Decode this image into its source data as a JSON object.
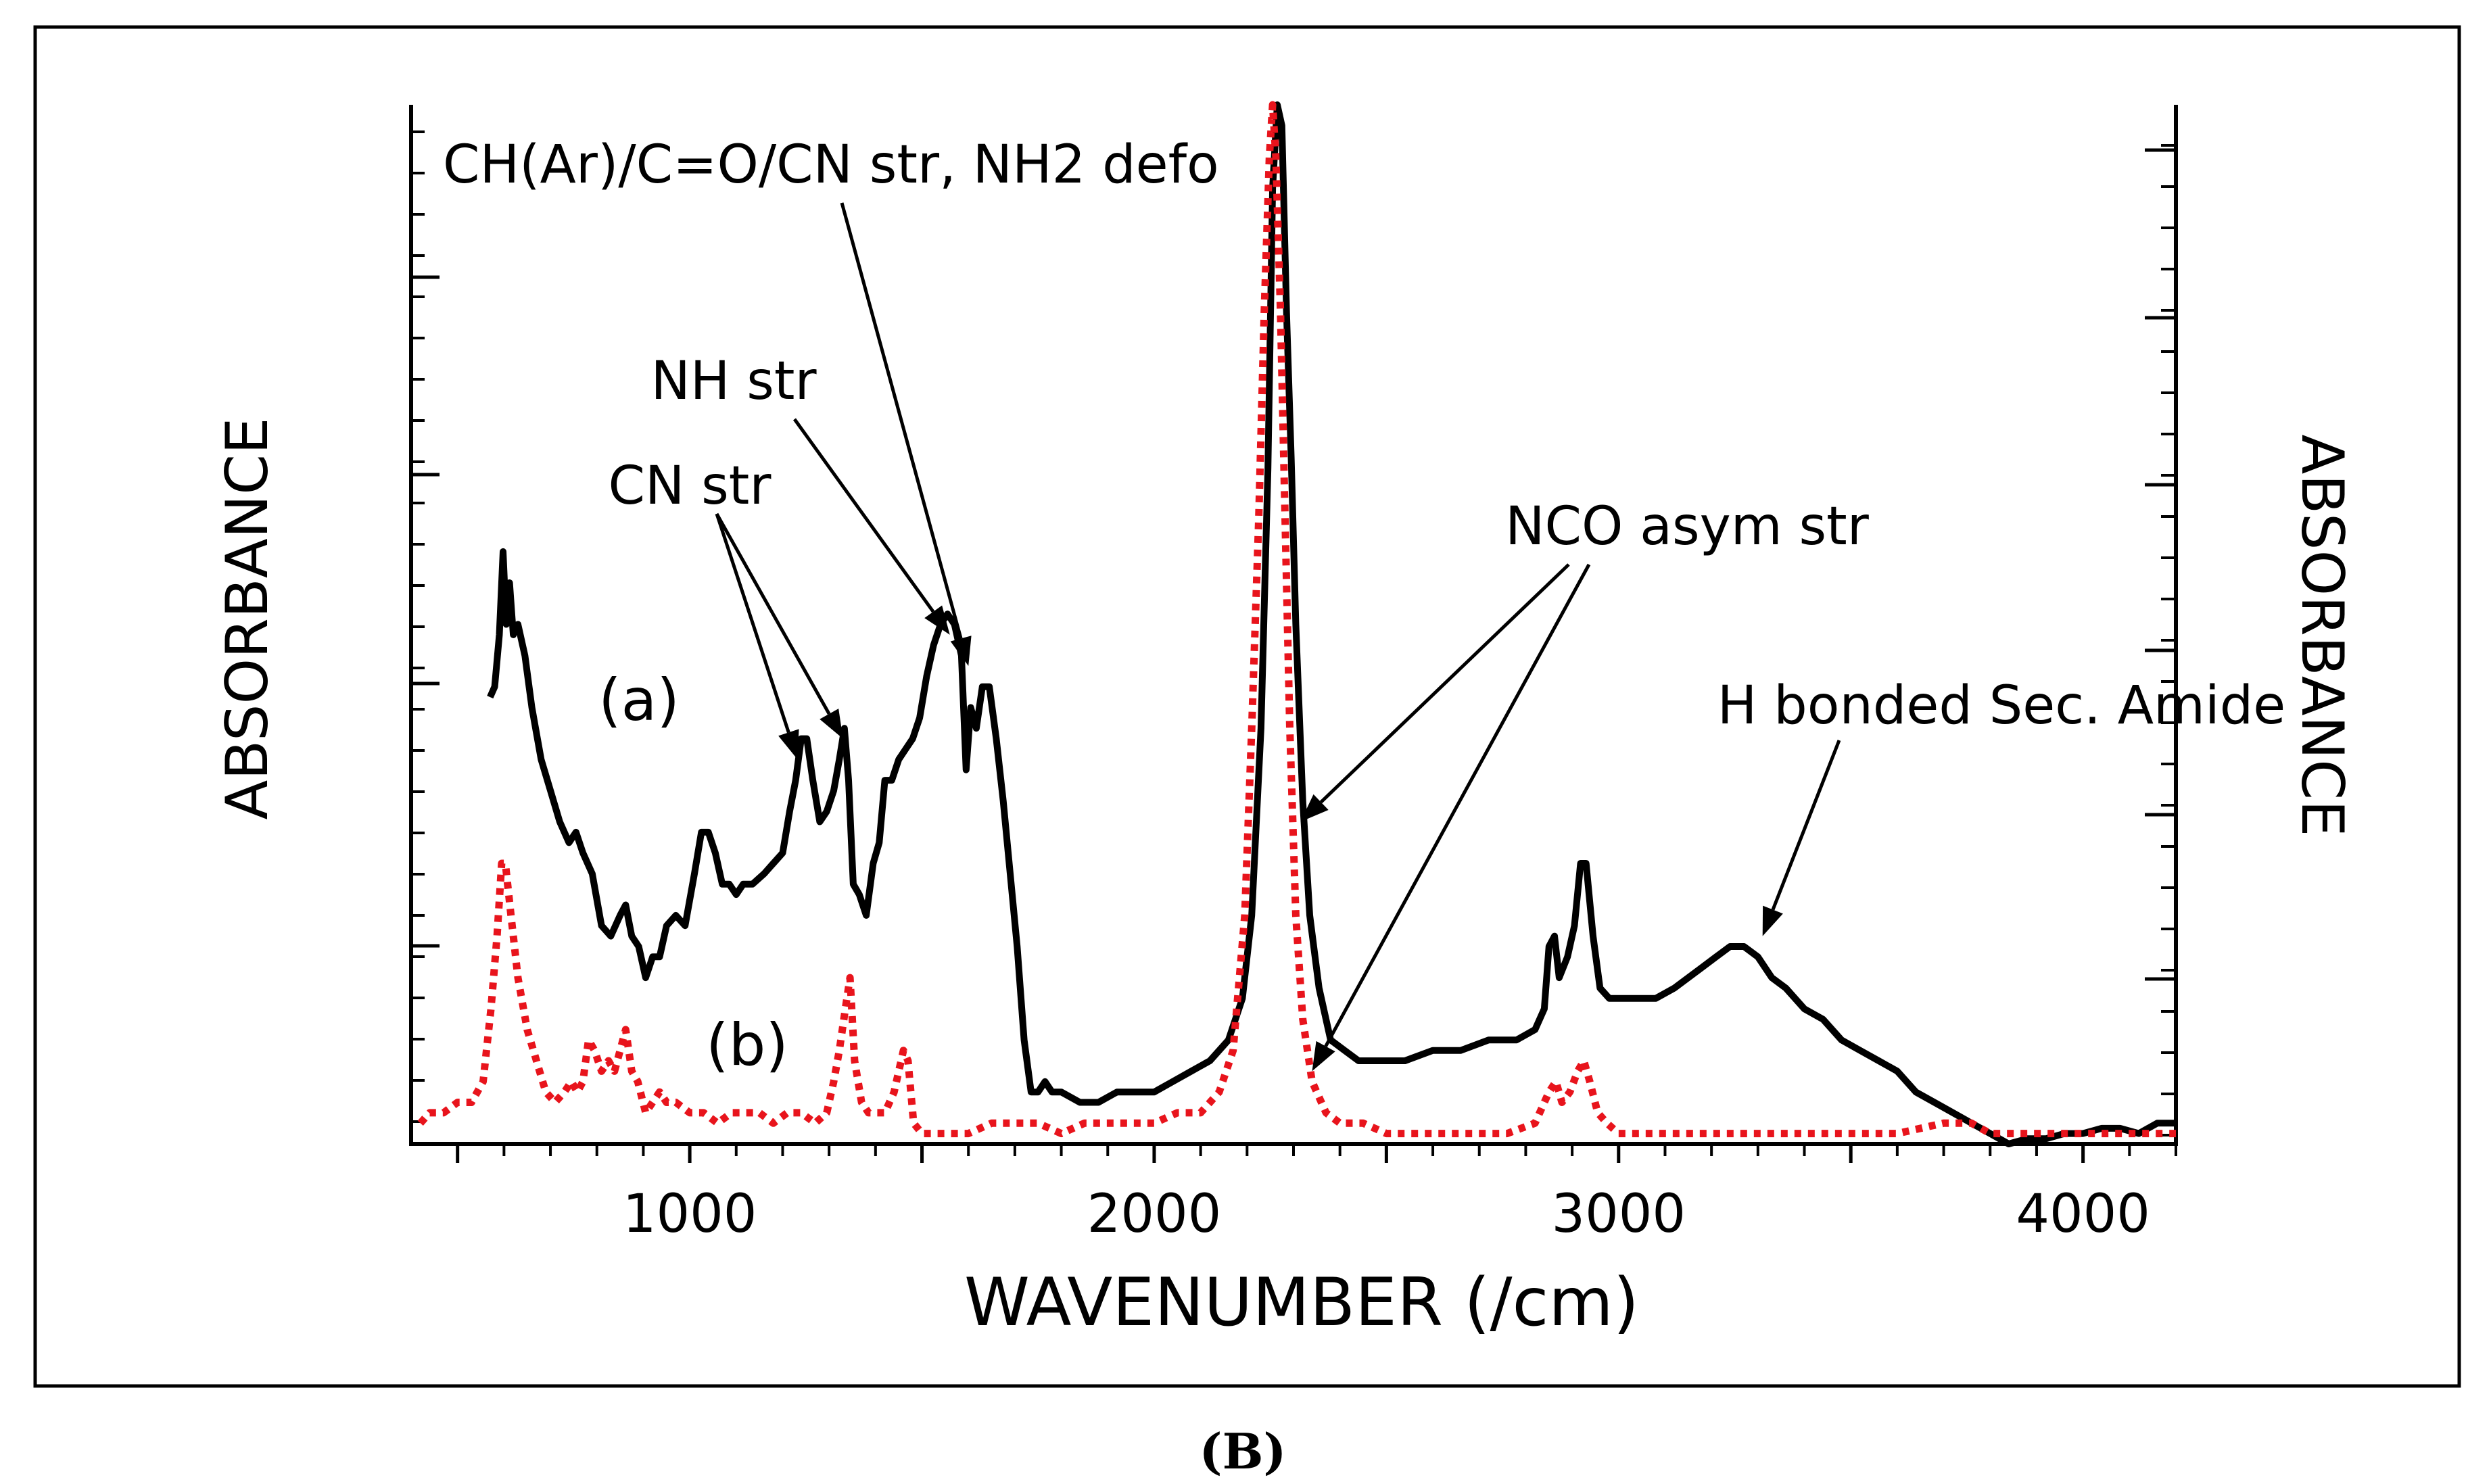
{
  "chart_data": {
    "type": "line",
    "xlabel": "WAVENUMBER (/cm)",
    "ylabel_left": "ABSORBANCE",
    "ylabel_right": "ABSORBANCE",
    "xlim": [
      400,
      4200
    ],
    "ylim": [
      0,
      100
    ],
    "x_ticks": [
      1000,
      2000,
      3000,
      4000
    ],
    "x_tick_labels": [
      "1000",
      "2000",
      "3000",
      "4000"
    ],
    "caption": "(B)",
    "series": [
      {
        "name": "(a)",
        "label": "(a)",
        "color": "#000000",
        "style": "solid",
        "points": [
          [
            570,
            43
          ],
          [
            580,
            44
          ],
          [
            590,
            49
          ],
          [
            598,
            57
          ],
          [
            605,
            50
          ],
          [
            612,
            54
          ],
          [
            620,
            49
          ],
          [
            630,
            50
          ],
          [
            645,
            47
          ],
          [
            660,
            42
          ],
          [
            680,
            37
          ],
          [
            700,
            34
          ],
          [
            720,
            31
          ],
          [
            740,
            29
          ],
          [
            755,
            30
          ],
          [
            770,
            28
          ],
          [
            790,
            26
          ],
          [
            810,
            21
          ],
          [
            830,
            20
          ],
          [
            850,
            22
          ],
          [
            862,
            23
          ],
          [
            875,
            20
          ],
          [
            890,
            19
          ],
          [
            905,
            16
          ],
          [
            920,
            18
          ],
          [
            935,
            18
          ],
          [
            950,
            21
          ],
          [
            970,
            22
          ],
          [
            990,
            21
          ],
          [
            1010,
            26
          ],
          [
            1025,
            30
          ],
          [
            1040,
            30
          ],
          [
            1055,
            28
          ],
          [
            1070,
            25
          ],
          [
            1085,
            25
          ],
          [
            1100,
            24
          ],
          [
            1115,
            25
          ],
          [
            1135,
            25
          ],
          [
            1160,
            26
          ],
          [
            1180,
            27
          ],
          [
            1200,
            28
          ],
          [
            1215,
            32
          ],
          [
            1228,
            35
          ],
          [
            1240,
            39
          ],
          [
            1252,
            39
          ],
          [
            1265,
            35
          ],
          [
            1280,
            31
          ],
          [
            1295,
            32
          ],
          [
            1310,
            34
          ],
          [
            1322,
            37
          ],
          [
            1333,
            40
          ],
          [
            1342,
            35
          ],
          [
            1352,
            25
          ],
          [
            1365,
            24
          ],
          [
            1380,
            22
          ],
          [
            1395,
            27
          ],
          [
            1408,
            29
          ],
          [
            1420,
            35
          ],
          [
            1435,
            35
          ],
          [
            1450,
            37
          ],
          [
            1465,
            38
          ],
          [
            1480,
            39
          ],
          [
            1495,
            41
          ],
          [
            1510,
            45
          ],
          [
            1525,
            48
          ],
          [
            1540,
            50
          ],
          [
            1555,
            51
          ],
          [
            1570,
            50
          ],
          [
            1585,
            47
          ],
          [
            1595,
            36
          ],
          [
            1605,
            42
          ],
          [
            1617,
            40
          ],
          [
            1630,
            44
          ],
          [
            1645,
            44
          ],
          [
            1660,
            39
          ],
          [
            1675,
            33
          ],
          [
            1690,
            26
          ],
          [
            1705,
            19
          ],
          [
            1720,
            10
          ],
          [
            1735,
            5
          ],
          [
            1750,
            5
          ],
          [
            1765,
            6
          ],
          [
            1780,
            5
          ],
          [
            1800,
            5
          ],
          [
            1840,
            4
          ],
          [
            1880,
            4
          ],
          [
            1920,
            5
          ],
          [
            1960,
            5
          ],
          [
            2000,
            5
          ],
          [
            2040,
            6
          ],
          [
            2080,
            7
          ],
          [
            2120,
            8
          ],
          [
            2160,
            10
          ],
          [
            2190,
            14
          ],
          [
            2210,
            22
          ],
          [
            2230,
            40
          ],
          [
            2245,
            65
          ],
          [
            2255,
            92
          ],
          [
            2265,
            100
          ],
          [
            2275,
            98
          ],
          [
            2285,
            80
          ],
          [
            2295,
            66
          ],
          [
            2305,
            50
          ],
          [
            2320,
            33
          ],
          [
            2335,
            22
          ],
          [
            2355,
            15
          ],
          [
            2380,
            10
          ],
          [
            2410,
            9
          ],
          [
            2440,
            8
          ],
          [
            2480,
            8
          ],
          [
            2540,
            8
          ],
          [
            2600,
            9
          ],
          [
            2660,
            9
          ],
          [
            2720,
            10
          ],
          [
            2780,
            10
          ],
          [
            2820,
            11
          ],
          [
            2840,
            13
          ],
          [
            2850,
            19
          ],
          [
            2862,
            20
          ],
          [
            2872,
            16
          ],
          [
            2890,
            18
          ],
          [
            2905,
            21
          ],
          [
            2918,
            27
          ],
          [
            2930,
            27
          ],
          [
            2945,
            20
          ],
          [
            2960,
            15
          ],
          [
            2980,
            14
          ],
          [
            3000,
            14
          ],
          [
            3040,
            14
          ],
          [
            3080,
            14
          ],
          [
            3120,
            15
          ],
          [
            3150,
            16
          ],
          [
            3180,
            17
          ],
          [
            3210,
            18
          ],
          [
            3240,
            19
          ],
          [
            3270,
            19
          ],
          [
            3300,
            18
          ],
          [
            3330,
            16
          ],
          [
            3360,
            15
          ],
          [
            3400,
            13
          ],
          [
            3440,
            12
          ],
          [
            3480,
            10
          ],
          [
            3520,
            9
          ],
          [
            3560,
            8
          ],
          [
            3600,
            7
          ],
          [
            3640,
            5
          ],
          [
            3680,
            4
          ],
          [
            3720,
            3
          ],
          [
            3760,
            2
          ],
          [
            3800,
            1
          ],
          [
            3840,
            0
          ],
          [
            3880,
            0.5
          ],
          [
            3920,
            0.5
          ],
          [
            3960,
            1
          ],
          [
            4000,
            1
          ],
          [
            4040,
            1.5
          ],
          [
            4080,
            1.5
          ],
          [
            4120,
            1
          ],
          [
            4160,
            2
          ],
          [
            4200,
            2
          ]
        ]
      },
      {
        "name": "(b)",
        "label": "(b)",
        "color": "#e8141c",
        "style": "dotted",
        "points": [
          [
            420,
            2
          ],
          [
            440,
            3
          ],
          [
            470,
            3
          ],
          [
            500,
            4
          ],
          [
            530,
            4
          ],
          [
            555,
            6
          ],
          [
            572,
            13
          ],
          [
            585,
            20
          ],
          [
            595,
            27
          ],
          [
            603,
            27
          ],
          [
            615,
            22
          ],
          [
            630,
            16
          ],
          [
            650,
            11
          ],
          [
            670,
            8
          ],
          [
            690,
            5
          ],
          [
            710,
            4
          ],
          [
            730,
            5
          ],
          [
            745,
            6
          ],
          [
            758,
            5
          ],
          [
            770,
            6
          ],
          [
            782,
            10
          ],
          [
            795,
            9
          ],
          [
            810,
            7
          ],
          [
            825,
            8
          ],
          [
            838,
            7
          ],
          [
            850,
            9
          ],
          [
            862,
            11
          ],
          [
            875,
            7
          ],
          [
            888,
            6
          ],
          [
            905,
            3
          ],
          [
            920,
            4
          ],
          [
            935,
            5
          ],
          [
            950,
            4
          ],
          [
            970,
            4
          ],
          [
            1000,
            3
          ],
          [
            1030,
            3
          ],
          [
            1060,
            2
          ],
          [
            1090,
            3
          ],
          [
            1120,
            3
          ],
          [
            1150,
            3
          ],
          [
            1180,
            2
          ],
          [
            1210,
            3
          ],
          [
            1240,
            3
          ],
          [
            1270,
            2
          ],
          [
            1295,
            3
          ],
          [
            1310,
            6
          ],
          [
            1322,
            9
          ],
          [
            1335,
            13
          ],
          [
            1345,
            16
          ],
          [
            1355,
            8
          ],
          [
            1370,
            4
          ],
          [
            1385,
            3
          ],
          [
            1400,
            3
          ],
          [
            1420,
            3
          ],
          [
            1440,
            5
          ],
          [
            1450,
            7
          ],
          [
            1460,
            9
          ],
          [
            1470,
            8
          ],
          [
            1482,
            2
          ],
          [
            1500,
            1
          ],
          [
            1550,
            1
          ],
          [
            1600,
            1
          ],
          [
            1650,
            2
          ],
          [
            1700,
            2
          ],
          [
            1750,
            2
          ],
          [
            1800,
            1
          ],
          [
            1850,
            2
          ],
          [
            1900,
            2
          ],
          [
            1950,
            2
          ],
          [
            2000,
            2
          ],
          [
            2050,
            3
          ],
          [
            2100,
            3
          ],
          [
            2140,
            5
          ],
          [
            2170,
            9
          ],
          [
            2195,
            22
          ],
          [
            2210,
            40
          ],
          [
            2225,
            60
          ],
          [
            2237,
            80
          ],
          [
            2248,
            95
          ],
          [
            2255,
            100
          ],
          [
            2262,
            95
          ],
          [
            2272,
            80
          ],
          [
            2282,
            60
          ],
          [
            2292,
            40
          ],
          [
            2305,
            22
          ],
          [
            2320,
            12
          ],
          [
            2340,
            6
          ],
          [
            2370,
            3
          ],
          [
            2400,
            2
          ],
          [
            2450,
            2
          ],
          [
            2500,
            1
          ],
          [
            2550,
            1
          ],
          [
            2600,
            1
          ],
          [
            2650,
            1
          ],
          [
            2700,
            1
          ],
          [
            2760,
            1
          ],
          [
            2820,
            2
          ],
          [
            2850,
            5
          ],
          [
            2865,
            6
          ],
          [
            2878,
            4
          ],
          [
            2895,
            5
          ],
          [
            2912,
            7
          ],
          [
            2925,
            8
          ],
          [
            2938,
            6
          ],
          [
            2955,
            3
          ],
          [
            2975,
            2
          ],
          [
            3000,
            1
          ],
          [
            3050,
            1
          ],
          [
            3100,
            1
          ],
          [
            3200,
            1
          ],
          [
            3300,
            1
          ],
          [
            3400,
            1
          ],
          [
            3500,
            1
          ],
          [
            3600,
            1
          ],
          [
            3700,
            2
          ],
          [
            3760,
            2
          ],
          [
            3800,
            1
          ],
          [
            3900,
            1
          ],
          [
            4000,
            1
          ],
          [
            4100,
            1
          ],
          [
            4200,
            1
          ]
        ]
      }
    ],
    "annotations": [
      {
        "text": "CH(Ar)/C=O/CN str, NH2 defo",
        "targets": [
          [
            1600,
            46
          ]
        ]
      },
      {
        "text": "NH str",
        "targets": [
          [
            1560,
            49
          ]
        ]
      },
      {
        "text": "CN str",
        "targets": [
          [
            1232,
            37
          ],
          [
            1330,
            39
          ]
        ]
      },
      {
        "text": "NCO asym str",
        "targets": [
          [
            2315,
            31
          ],
          [
            2340,
            7
          ]
        ]
      },
      {
        "text": "H bonded Sec. Amide",
        "targets": [
          [
            3310,
            20
          ]
        ]
      }
    ]
  }
}
